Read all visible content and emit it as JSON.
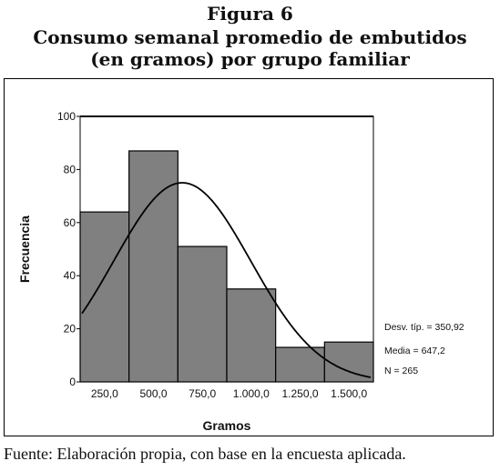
{
  "figure": {
    "label": "Figura 6",
    "title_line1": "Consumo semanal promedio de embutidos",
    "title_line2": "(en gramos) por grupo familiar"
  },
  "chart_data": {
    "type": "bar",
    "subtype": "histogram-with-normal-curve",
    "xlabel": "Gramos",
    "ylabel": "Frecuencia",
    "categories": [
      "250,0",
      "500,0",
      "750,0",
      "1.000,0",
      "1.250,0",
      "1.500,0"
    ],
    "values": [
      64,
      87,
      51,
      35,
      13,
      15
    ],
    "ylim": [
      0,
      100
    ],
    "yticks": [
      0,
      20,
      40,
      60,
      80,
      100
    ],
    "curve": {
      "mean": 647.2,
      "std": 350.92,
      "n": 265,
      "bin_width": 250,
      "peak_value": 75
    },
    "stats": {
      "std_label": "Desv. típ. = 350,92",
      "mean_label": "Media = 647,2",
      "n_label": "N = 265"
    },
    "grid": false,
    "colors": {
      "bar_fill": "#808080",
      "bar_stroke": "#000000",
      "curve": "#000000"
    }
  },
  "footer": {
    "source": "Fuente: Elaboración propia, con base en la encuesta aplicada."
  }
}
